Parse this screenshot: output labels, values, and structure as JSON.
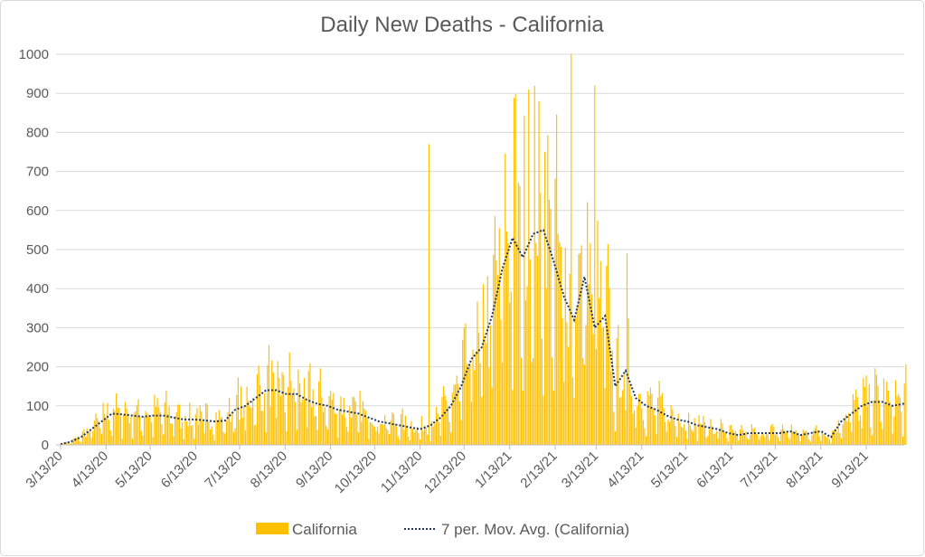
{
  "chart_data": {
    "type": "bar",
    "title": "Daily New Deaths - California",
    "xlabel": "",
    "ylabel": "",
    "ylim": [
      0,
      1000
    ],
    "yticks": [
      "0",
      "100",
      "200",
      "300",
      "400",
      "500",
      "600",
      "700",
      "800",
      "900",
      "1000"
    ],
    "xticks": [
      "3/13/20",
      "4/13/20",
      "5/13/20",
      "6/13/20",
      "7/13/20",
      "8/13/20",
      "9/13/20",
      "10/13/20",
      "11/13/20",
      "12/13/20",
      "1/13/21",
      "2/13/21",
      "3/13/21",
      "4/13/21",
      "5/13/21",
      "6/13/21",
      "7/13/21",
      "8/13/21",
      "9/13/21"
    ],
    "xtick_day_offsets": [
      0,
      31,
      61,
      92,
      122,
      153,
      184,
      214,
      245,
      275,
      306,
      337,
      365,
      396,
      426,
      457,
      487,
      518,
      549
    ],
    "start_date": "3/13/20",
    "grid": true,
    "legend_position": "bottom",
    "series": [
      {
        "name": "California",
        "kind": "bar",
        "color": "#FFC000",
        "description_of_values": "daily values derived from weekly averages with weekday pattern",
        "spikes": [
          {
            "day": 319,
            "value": 910
          },
          {
            "day": 348,
            "value": 1000
          },
          {
            "day": 364,
            "value": 920
          },
          {
            "day": 251,
            "value": 770
          },
          {
            "day": 386,
            "value": 490
          }
        ]
      },
      {
        "name": "7 per. Mov. Avg. (California)",
        "kind": "line",
        "color": "#203864",
        "weekly_values": [
          2,
          8,
          20,
          40,
          60,
          80,
          78,
          75,
          72,
          75,
          75,
          70,
          65,
          65,
          63,
          60,
          62,
          90,
          100,
          120,
          140,
          140,
          130,
          130,
          115,
          105,
          100,
          90,
          85,
          80,
          70,
          60,
          55,
          50,
          45,
          40,
          50,
          70,
          100,
          150,
          220,
          250,
          330,
          450,
          530,
          480,
          540,
          550,
          470,
          380,
          320,
          430,
          300,
          330,
          150,
          190,
          120,
          100,
          90,
          75,
          65,
          60,
          50,
          45,
          40,
          30,
          25,
          30,
          30,
          30,
          30,
          35,
          25,
          30,
          35,
          20,
          60,
          80,
          100,
          110,
          110,
          100,
          105
        ]
      }
    ]
  }
}
